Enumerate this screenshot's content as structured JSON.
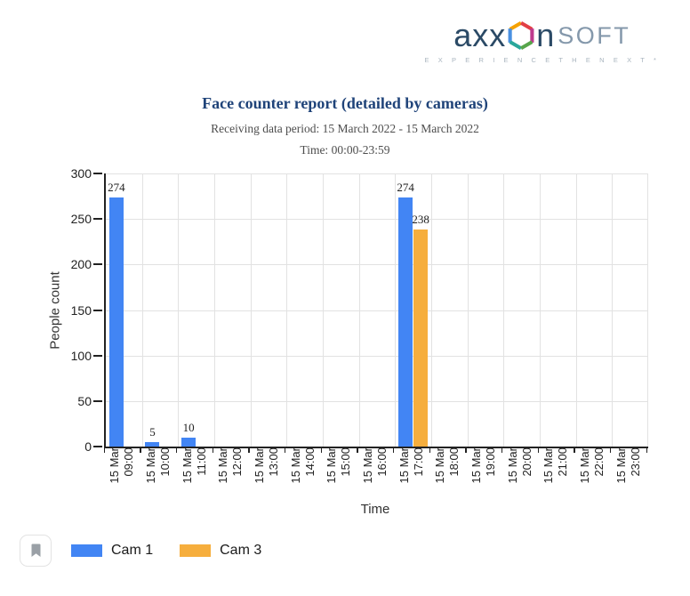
{
  "logo": {
    "part1": "axx",
    "part2": "n",
    "part3": "SOFT",
    "tagline": "E X P E R I E N C E   T H E   N E X T *",
    "hex_colors": {
      "upper_left": "#F5A100",
      "upper_right": "#E23F44",
      "left": "#4A90E2",
      "right": "#BE3A8E",
      "lower_left": "#2AA79B",
      "lower_right": "#57A54B"
    }
  },
  "report": {
    "title": "Face counter report (detailed by cameras)",
    "period": "Receiving data period: 15 March 2022 - 15 March 2022",
    "time_range": "Time: 00:00-23:59"
  },
  "chart_data": {
    "type": "bar",
    "title": "",
    "xlabel": "Time",
    "ylabel": "People count",
    "ylim": [
      0,
      300
    ],
    "yticks": [
      0,
      50,
      100,
      150,
      200,
      250,
      300
    ],
    "grid": true,
    "legend_position": "bottom-left",
    "bar_value_labels": true,
    "categories": [
      {
        "date": "15 Mar",
        "time": "09:00"
      },
      {
        "date": "15 Mar",
        "time": "10:00"
      },
      {
        "date": "15 Mar",
        "time": "11:00"
      },
      {
        "date": "15 Mar",
        "time": "12:00"
      },
      {
        "date": "15 Mar",
        "time": "13:00"
      },
      {
        "date": "15 Mar",
        "time": "14:00"
      },
      {
        "date": "15 Mar",
        "time": "15:00"
      },
      {
        "date": "15 Mar",
        "time": "16:00"
      },
      {
        "date": "15 Mar",
        "time": "17:00"
      },
      {
        "date": "15 Mar",
        "time": "18:00"
      },
      {
        "date": "15 Mar",
        "time": "19:00"
      },
      {
        "date": "15 Mar",
        "time": "20:00"
      },
      {
        "date": "15 Mar",
        "time": "21:00"
      },
      {
        "date": "15 Mar",
        "time": "22:00"
      },
      {
        "date": "15 Mar",
        "time": "23:00"
      }
    ],
    "series": [
      {
        "name": "Cam 1",
        "color": "#4285F4",
        "values": [
          274,
          5,
          10,
          0,
          0,
          0,
          0,
          0,
          274,
          0,
          0,
          0,
          0,
          0,
          0
        ]
      },
      {
        "name": "Cam 3",
        "color": "#F6AE3D",
        "values": [
          0,
          0,
          0,
          0,
          0,
          0,
          0,
          0,
          238,
          0,
          0,
          0,
          0,
          0,
          0
        ]
      }
    ]
  },
  "footer": {
    "bookmark_icon": "bookmark"
  }
}
